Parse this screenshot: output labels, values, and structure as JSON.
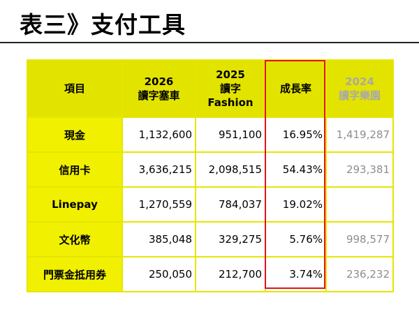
{
  "slide": {
    "title": "表三》支付工具"
  },
  "table": {
    "headers": [
      {
        "lines": [
          "項目"
        ]
      },
      {
        "lines": [
          "2026",
          "讀字塞車"
        ]
      },
      {
        "lines": [
          "2025",
          "讀字",
          "Fashion"
        ]
      },
      {
        "lines": [
          "成長率"
        ]
      },
      {
        "lines": [
          "2024",
          "讀字樂園"
        ]
      }
    ],
    "rows": [
      {
        "item": "現金",
        "y2026": "1,132,600",
        "y2025": "951,100",
        "growth": "16.95%",
        "y2024": "1,419,287"
      },
      {
        "item": "信用卡",
        "y2026": "3,636,215",
        "y2025": "2,098,515",
        "growth": "54.43%",
        "y2024": "293,381"
      },
      {
        "item": "Linepay",
        "y2026": "1,270,559",
        "y2025": "784,037",
        "growth": "19.02%",
        "y2024": ""
      },
      {
        "item": "文化幣",
        "y2026": "385,048",
        "y2025": "329,275",
        "growth": "5.76%",
        "y2024": "998,577"
      },
      {
        "item": "門票金抵用券",
        "y2026": "250,050",
        "y2025": "212,700",
        "growth": "3.74%",
        "y2024": "236,232"
      }
    ]
  },
  "colors": {
    "header_fill": "#e3e300",
    "label_fill": "#f0f000",
    "grid_line": "#e6e600",
    "highlight_border": "#e0141c",
    "faded_text": "#8d8d8d"
  }
}
